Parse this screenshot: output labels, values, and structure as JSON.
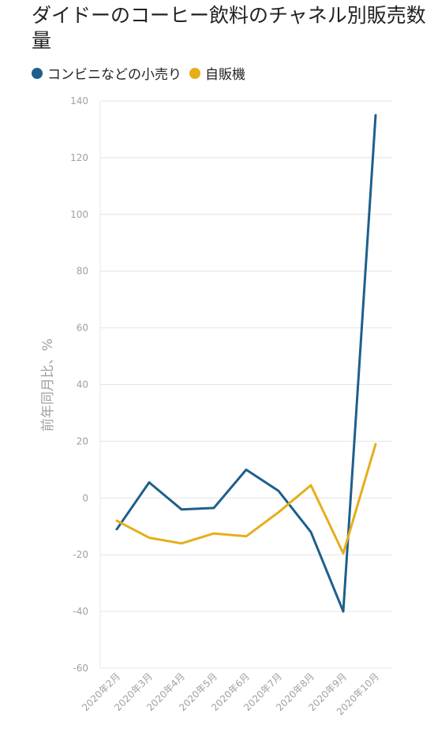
{
  "chart_data": {
    "type": "line",
    "title": "ダイドーのコーヒー飲料のチャネル別販売数量",
    "ylabel": "前年同月比、%",
    "xlabel": "",
    "ylim": [
      -60,
      140
    ],
    "yticks": [
      140,
      120,
      100,
      80,
      60,
      40,
      20,
      0,
      -20,
      -40,
      -60
    ],
    "categories": [
      "2020年2月",
      "2020年3月",
      "2020年4月",
      "2020年5月",
      "2020年6月",
      "2020年7月",
      "2020年8月",
      "2020年9月",
      "2020年10月"
    ],
    "grid": true,
    "legend_position": "top-left",
    "series": [
      {
        "name": "コンビニなどの小売り",
        "color": "#1f5f8b",
        "values": [
          -11,
          5.5,
          -4,
          -3.5,
          10,
          2.5,
          -12,
          -40,
          135
        ]
      },
      {
        "name": "自販機",
        "color": "#e6ae1a",
        "values": [
          -8,
          -14,
          -16,
          -12.5,
          -13.5,
          -5,
          4.5,
          -19.5,
          19
        ]
      }
    ]
  }
}
